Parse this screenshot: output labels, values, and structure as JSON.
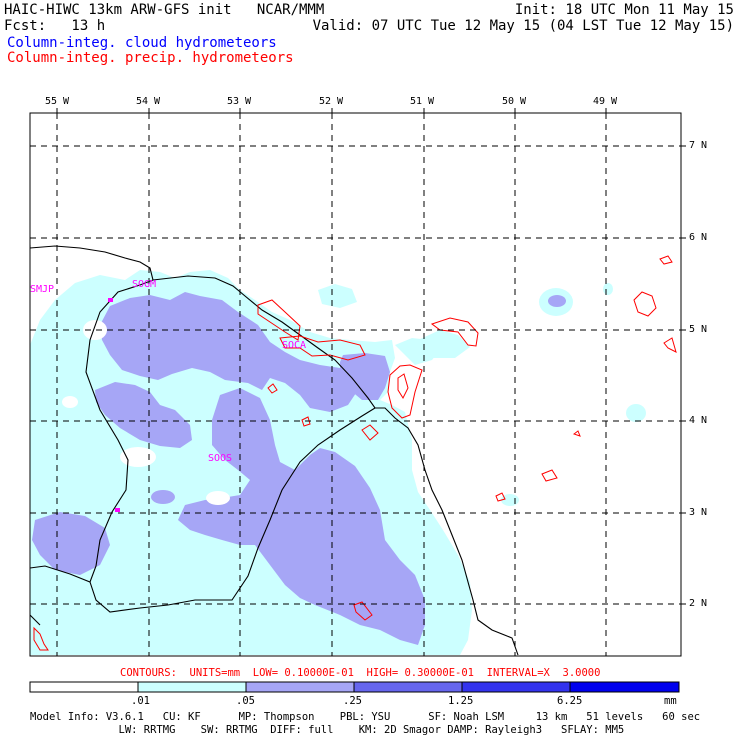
{
  "header": {
    "left_line1": "HAIC-HIWC 13km ARW-GFS init   NCAR/MMM",
    "left_line2": "Fcst:   13 h",
    "right_line1": "Init: 18 UTC Mon 11 May 15",
    "right_line2": "Valid: 07 UTC Tue 12 May 15 (04 LST Tue 12 May 15)",
    "field_cloud": "Column-integ. cloud hydrometeors",
    "field_precip": "Column-integ. precip. hydrometeors"
  },
  "map": {
    "lon_labels": [
      "55 W",
      "54 W",
      "53 W",
      "52 W",
      "51 W",
      "50 W",
      "49 W"
    ],
    "lat_labels": [
      "7 N",
      "6 N",
      "5 N",
      "4 N",
      "3 N",
      "2 N"
    ],
    "stations": [
      "SMJP",
      "SOGM",
      "SOCA",
      "SOOS"
    ],
    "colors": {
      "cloud_light": "#ccffff",
      "cloud_mid": "#a6a6f6",
      "precip_contour": "#ff0000",
      "station": "#ff00ff"
    }
  },
  "contour_info": "CONTOURS:  UNITS=mm  LOW= 0.10000E-01  HIGH= 0.30000E-01  INTERVAL=X  3.0000",
  "colorbar": {
    "ticks": [
      ".01",
      ".05",
      ".25",
      "1.25",
      "6.25"
    ],
    "unit": "mm",
    "colors": [
      "#ffffff",
      "#ccffff",
      "#a6a6f6",
      "#6666ee",
      "#3333ee",
      "#0000ee"
    ]
  },
  "model_info": {
    "line1": "Model Info: V3.6.1   CU: KF      MP: Thompson    PBL: YSU      SF: Noah LSM     13 km   51 levels   60 sec",
    "line2": "              LW: RRTMG    SW: RRTMG  DIFF: full    KM: 2D Smagor DAMP: Rayleigh3   SFLAY: MM5"
  }
}
